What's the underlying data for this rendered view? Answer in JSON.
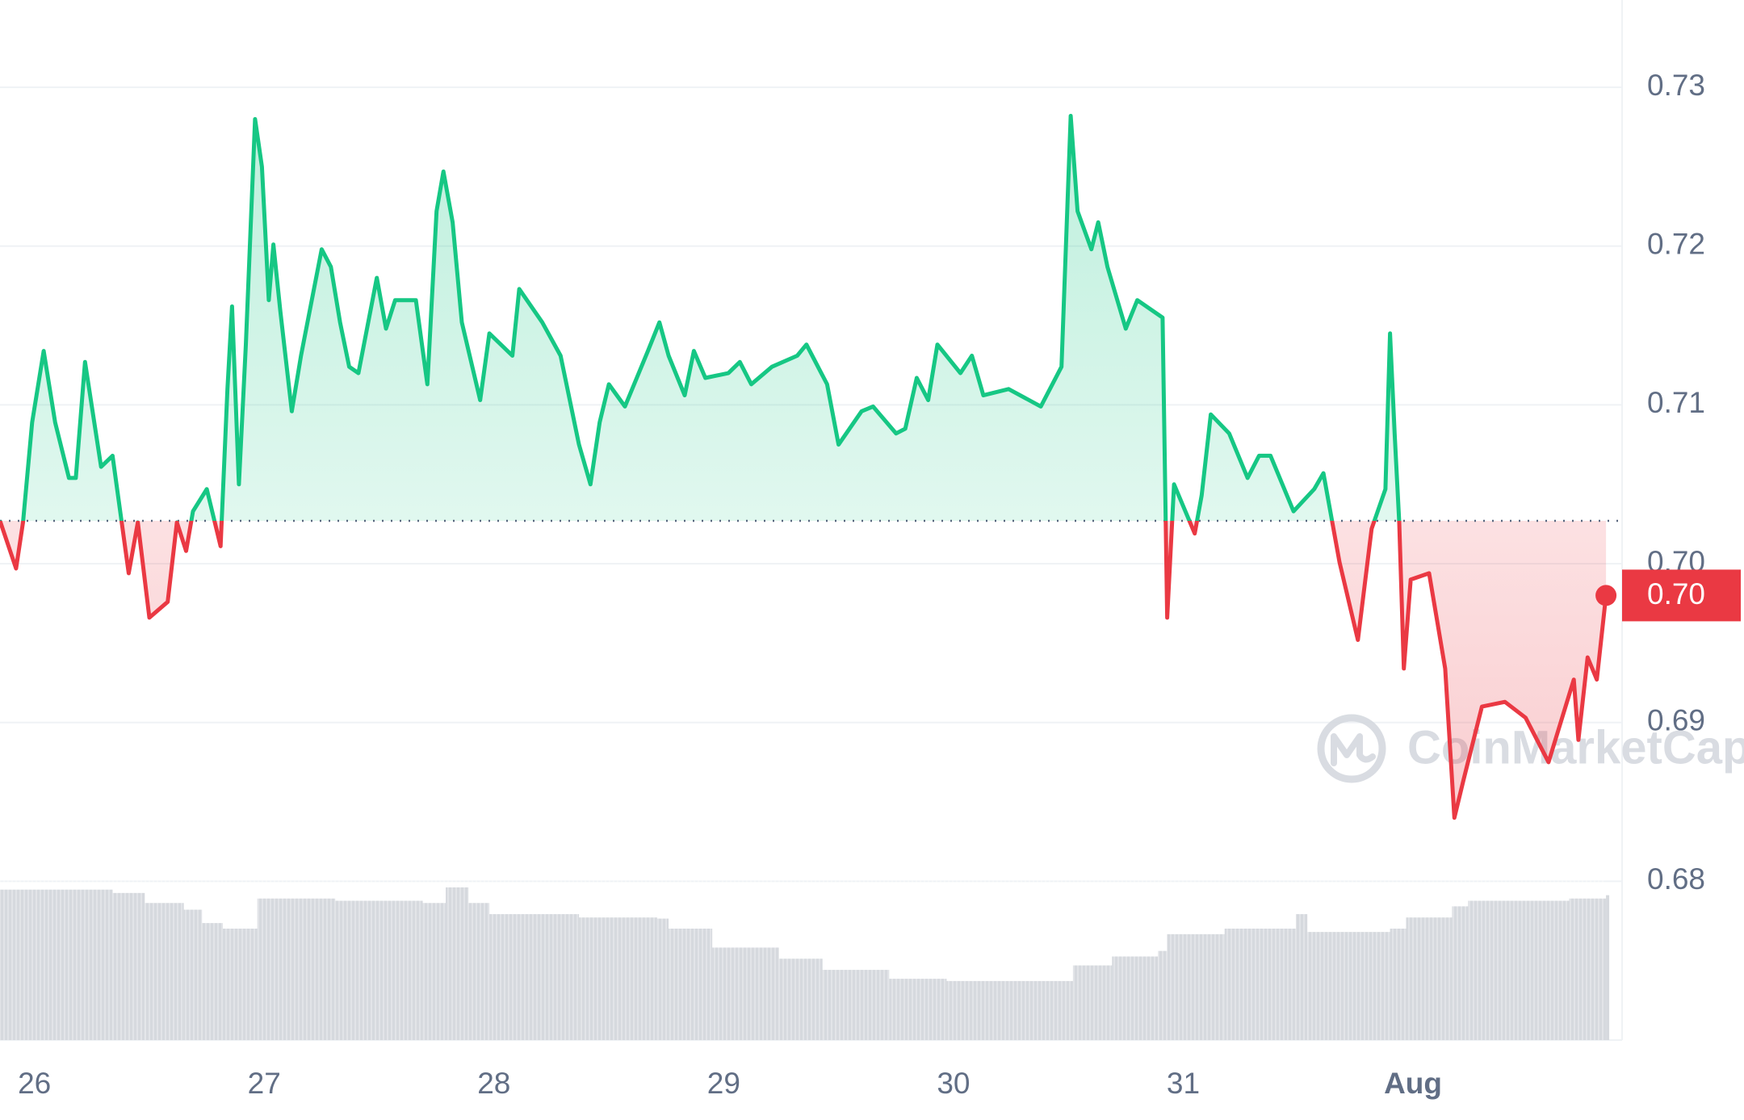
{
  "chart_data": {
    "type": "line",
    "watermark": "CoinMarketCap",
    "xlim": [
      25.85,
      32.91
    ],
    "xticks": [
      26,
      27,
      28,
      29,
      30,
      31,
      {
        "value": 32,
        "label": "Aug"
      }
    ],
    "ylim": [
      0.67,
      0.7355
    ],
    "yticks": [
      0.68,
      0.69,
      {
        "value": 0.7,
        "label": "0.70"
      },
      0.71,
      0.72,
      0.73
    ],
    "grid": true,
    "baseline": 0.7027,
    "up_color": "#16c784",
    "down_color": "#ea3943",
    "x": [
      25.85,
      25.92,
      25.95,
      25.99,
      26.04,
      26.09,
      26.15,
      26.18,
      26.22,
      26.29,
      26.34,
      26.41,
      26.45,
      26.5,
      26.58,
      26.62,
      26.66,
      26.69,
      26.75,
      26.81,
      26.84,
      26.86,
      26.89,
      26.92,
      26.96,
      26.99,
      27.02,
      27.04,
      27.07,
      27.12,
      27.16,
      27.25,
      27.29,
      27.33,
      27.37,
      27.41,
      27.49,
      27.53,
      27.57,
      27.66,
      27.71,
      27.75,
      27.78,
      27.82,
      27.86,
      27.94,
      27.98,
      28.08,
      28.11,
      28.21,
      28.29,
      28.37,
      28.42,
      28.46,
      28.5,
      28.57,
      28.67,
      28.72,
      28.76,
      28.83,
      28.87,
      28.92,
      29.02,
      29.07,
      29.12,
      29.21,
      29.32,
      29.36,
      29.45,
      29.5,
      29.6,
      29.65,
      29.75,
      29.79,
      29.84,
      29.89,
      29.93,
      30.03,
      30.08,
      30.13,
      30.24,
      30.38,
      30.47,
      30.51,
      30.54,
      30.6,
      30.63,
      30.67,
      30.75,
      30.8,
      30.91,
      30.93,
      30.96,
      31.05,
      31.08,
      31.12,
      31.2,
      31.28,
      31.33,
      31.38,
      31.48,
      31.57,
      31.61,
      31.68,
      31.76,
      31.82,
      31.88,
      31.9,
      31.92,
      31.94,
      31.96,
      31.99,
      32.07,
      32.14,
      32.18,
      32.22,
      32.3,
      32.4,
      32.49,
      32.59,
      32.7,
      32.72,
      32.76,
      32.8,
      32.84
    ],
    "series": [
      {
        "values": [
          0.7027,
          0.6997,
          0.7026,
          0.7089,
          0.7134,
          0.7089,
          0.7054,
          0.7054,
          0.7127,
          0.7061,
          0.7068,
          0.6994,
          0.7026,
          0.6966,
          0.6976,
          0.7026,
          0.7008,
          0.7033,
          0.7047,
          0.7011,
          0.711,
          0.7162,
          0.705,
          0.7138,
          0.728,
          0.725,
          0.7166,
          0.7201,
          0.7159,
          0.7096,
          0.7131,
          0.7198,
          0.7187,
          0.7152,
          0.7124,
          0.712,
          0.718,
          0.7148,
          0.7166,
          0.7166,
          0.7113,
          0.7222,
          0.7247,
          0.7215,
          0.7152,
          0.7103,
          0.7145,
          0.7131,
          0.7173,
          0.7152,
          0.7131,
          0.7075,
          0.705,
          0.7089,
          0.7113,
          0.7099,
          0.7134,
          0.7152,
          0.7131,
          0.7106,
          0.7134,
          0.7117,
          0.712,
          0.7127,
          0.7113,
          0.7124,
          0.7131,
          0.7138,
          0.7113,
          0.7075,
          0.7096,
          0.7099,
          0.7082,
          0.7085,
          0.7117,
          0.7103,
          0.7138,
          0.712,
          0.7131,
          0.7106,
          0.711,
          0.7099,
          0.7124,
          0.7282,
          0.7222,
          0.7198,
          0.7215,
          0.7187,
          0.7148,
          0.7166,
          0.7155,
          0.6966,
          0.705,
          0.7019,
          0.7043,
          0.7094,
          0.7082,
          0.7054,
          0.7068,
          0.7068,
          0.7033,
          0.7047,
          0.7057,
          0.7001,
          0.6952,
          0.7022,
          0.7047,
          0.7145,
          0.7082,
          0.7026,
          0.6934,
          0.699,
          0.6994,
          0.6934,
          0.684,
          0.6864,
          0.691,
          0.6913,
          0.6903,
          0.6875,
          0.6927,
          0.6889,
          0.6941,
          0.6927,
          0.698
        ],
        "last_value_label": "0.70"
      }
    ],
    "volume": {
      "color": "#d6d9de",
      "ylim": [
        0,
        150
      ],
      "x": [
        25.85,
        26.34,
        26.48,
        26.65,
        26.73,
        26.82,
        26.97,
        27.31,
        27.69,
        27.79,
        27.89,
        27.98,
        28.37,
        28.71,
        28.76,
        28.95,
        29.24,
        29.43,
        29.72,
        29.97,
        30.48,
        30.52,
        30.69,
        30.89,
        30.93,
        31.18,
        31.49,
        31.54,
        31.9,
        31.97,
        32.17,
        32.24,
        32.68,
        32.84
      ],
      "values": [
        135,
        132,
        123,
        117,
        105,
        100,
        127,
        125,
        123,
        137,
        123,
        113,
        110,
        109,
        100,
        83,
        73,
        63,
        55,
        53,
        53,
        67,
        75,
        80,
        95,
        100,
        113,
        97,
        100,
        110,
        120,
        125,
        127,
        130
      ]
    }
  }
}
